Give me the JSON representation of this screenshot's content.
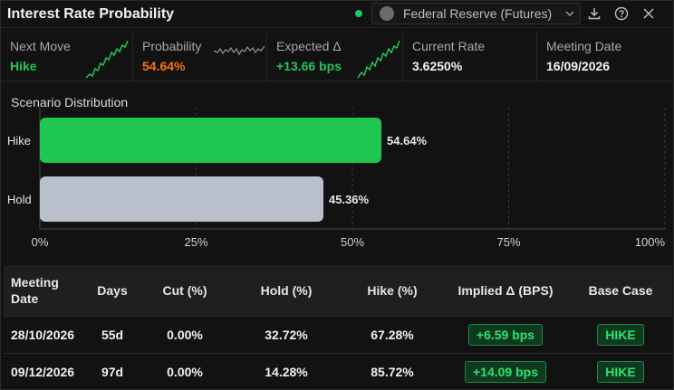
{
  "header": {
    "title": "Interest Rate Probability",
    "source_label": "Federal Reserve (Futures)"
  },
  "stats": [
    {
      "label": "Next Move",
      "value": "Hike",
      "color": "#22c55e"
    },
    {
      "label": "Probability",
      "value": "54.64%",
      "color": "#f97316"
    },
    {
      "label": "Expected Δ",
      "value": "+13.66 bps",
      "color": "#22c55e"
    },
    {
      "label": "Current Rate",
      "value": "3.6250%",
      "color": "#f2f2f2"
    },
    {
      "label": "Meeting Date",
      "value": "16/09/2026",
      "color": "#f2f2f2"
    }
  ],
  "chart_data": {
    "type": "bar",
    "orientation": "horizontal",
    "title": "Scenario Distribution",
    "categories": [
      "Hike",
      "Hold"
    ],
    "values": [
      54.64,
      45.36
    ],
    "value_labels": [
      "54.64%",
      "45.36%"
    ],
    "colors": [
      "#1fc650",
      "#b9c0cc"
    ],
    "xlim": [
      0,
      100
    ],
    "xticks": [
      "0%",
      "25%",
      "50%",
      "75%",
      "100%"
    ],
    "grid": true
  },
  "table": {
    "headers": [
      "Meeting Date",
      "Days",
      "Cut (%)",
      "Hold (%)",
      "Hike (%)",
      "Implied Δ (BPS)",
      "Base Case"
    ],
    "rows": [
      [
        "28/10/2026",
        "55d",
        "0.00%",
        "32.72%",
        "67.28%",
        "+6.59 bps",
        "HIKE"
      ],
      [
        "09/12/2026",
        "97d",
        "0.00%",
        "14.28%",
        "85.72%",
        "+14.09 bps",
        "HIKE"
      ]
    ]
  }
}
